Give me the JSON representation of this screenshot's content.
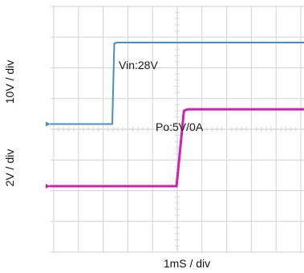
{
  "chart_data": {
    "type": "line",
    "title": "",
    "xlabel": "1mS / div",
    "ylabels": [
      "10V / div",
      "2V / div"
    ],
    "grid": true,
    "divisions": {
      "x": 10,
      "y": 8
    },
    "x_unit": "div",
    "series": [
      {
        "name": "Vin:28V",
        "color": "#4a90c2",
        "scale_label": "10V / div",
        "points": [
          [
            -0.8,
            -0.25
          ],
          [
            1.7,
            -0.25
          ],
          [
            1.78,
            9.8
          ],
          [
            1.9,
            9.9
          ],
          [
            10.0,
            9.9
          ]
        ]
      },
      {
        "name": "Po:5V/0A",
        "color": "#d020b0",
        "scale_label": "2V / div",
        "points": [
          [
            -0.8,
            -0.05
          ],
          [
            4.3,
            -0.05
          ],
          [
            4.6,
            5.0
          ],
          [
            4.75,
            5.1
          ],
          [
            10.0,
            5.1
          ]
        ]
      }
    ]
  }
}
